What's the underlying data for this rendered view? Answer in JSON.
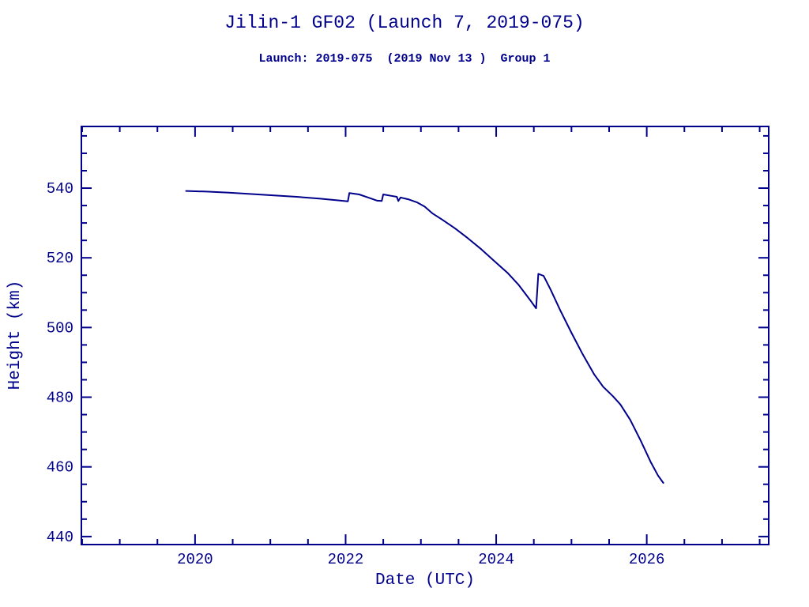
{
  "page": {
    "background": "#ffffff",
    "accent": "#00008B"
  },
  "header": {
    "title": "Jilin-1 GF02 (Launch 7, 2019-075)",
    "subtitle": "Launch: 2019-075  (2019 Nov 13 )  Group 1"
  },
  "chart_data": {
    "type": "line",
    "title": "Jilin-1 GF02 (Launch 7, 2019-075)",
    "subtitle": "Launch: 2019-075  (2019 Nov 13 )  Group 1",
    "xlabel": "Date (UTC)",
    "ylabel": "Height (km)",
    "xlim": [
      2018.49,
      2027.62
    ],
    "ylim": [
      437.7,
      557.7
    ],
    "x_major_ticks": [
      2020,
      2022,
      2024,
      2026
    ],
    "x_minor_step": 0.5,
    "y_major_ticks": [
      440,
      460,
      480,
      500,
      520,
      540
    ],
    "y_minor_step": 5,
    "grid": false,
    "legend_position": "none",
    "line_color": "#00008B",
    "series": [
      {
        "name": "height_km",
        "points": [
          [
            2019.88,
            539.2
          ],
          [
            2020.15,
            539.0
          ],
          [
            2020.45,
            538.7
          ],
          [
            2020.75,
            538.3
          ],
          [
            2021.05,
            537.9
          ],
          [
            2021.35,
            537.5
          ],
          [
            2021.65,
            537.0
          ],
          [
            2021.9,
            536.5
          ],
          [
            2022.03,
            536.2
          ],
          [
            2022.05,
            538.6
          ],
          [
            2022.18,
            538.2
          ],
          [
            2022.3,
            537.3
          ],
          [
            2022.42,
            536.4
          ],
          [
            2022.48,
            536.3
          ],
          [
            2022.5,
            538.2
          ],
          [
            2022.6,
            537.8
          ],
          [
            2022.68,
            537.5
          ],
          [
            2022.7,
            536.3
          ],
          [
            2022.73,
            537.3
          ],
          [
            2022.83,
            536.8
          ],
          [
            2022.95,
            535.9
          ],
          [
            2023.05,
            534.7
          ],
          [
            2023.15,
            532.8
          ],
          [
            2023.28,
            531.0
          ],
          [
            2023.45,
            528.5
          ],
          [
            2023.62,
            525.7
          ],
          [
            2023.8,
            522.5
          ],
          [
            2024.0,
            518.6
          ],
          [
            2024.15,
            515.7
          ],
          [
            2024.3,
            512.2
          ],
          [
            2024.45,
            507.9
          ],
          [
            2024.53,
            505.5
          ],
          [
            2024.56,
            515.4
          ],
          [
            2024.63,
            514.8
          ],
          [
            2024.72,
            511.0
          ],
          [
            2024.85,
            505.0
          ],
          [
            2025.0,
            498.5
          ],
          [
            2025.15,
            492.3
          ],
          [
            2025.3,
            486.6
          ],
          [
            2025.42,
            483.0
          ],
          [
            2025.55,
            480.3
          ],
          [
            2025.65,
            477.9
          ],
          [
            2025.78,
            473.5
          ],
          [
            2025.92,
            467.5
          ],
          [
            2026.05,
            461.5
          ],
          [
            2026.15,
            457.5
          ],
          [
            2026.22,
            455.4
          ]
        ]
      }
    ]
  }
}
